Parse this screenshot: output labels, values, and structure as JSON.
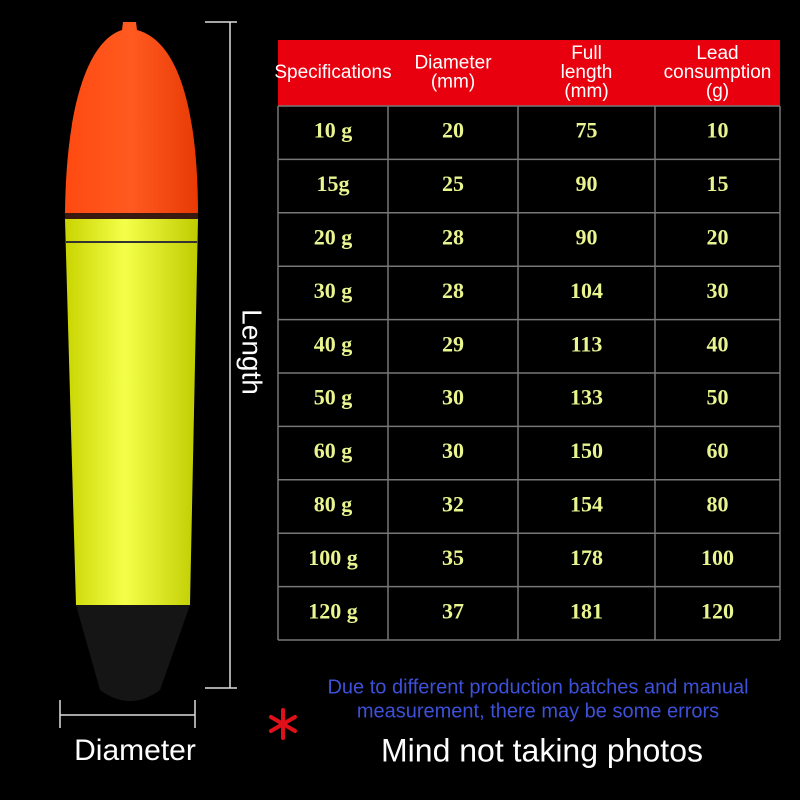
{
  "dimensions": {
    "length": "Length",
    "diameter": "Diameter"
  },
  "table": {
    "header": [
      [
        "Specifications"
      ],
      [
        "Diameter",
        "(mm)"
      ],
      [
        "Full",
        "length",
        "(mm)"
      ],
      [
        "Lead",
        "consumption",
        "(g)"
      ]
    ],
    "rows": [
      [
        "10 g",
        20,
        75,
        10
      ],
      [
        "15g",
        25,
        90,
        15
      ],
      [
        "20 g",
        28,
        90,
        20
      ],
      [
        "30 g",
        28,
        104,
        30
      ],
      [
        "40 g",
        29,
        113,
        40
      ],
      [
        "50 g",
        30,
        133,
        50
      ],
      [
        "60 g",
        30,
        150,
        60
      ],
      [
        "80 g",
        32,
        154,
        80
      ],
      [
        "100 g",
        35,
        178,
        100
      ],
      [
        "120 g",
        37,
        181,
        120
      ]
    ]
  },
  "note": {
    "lines": [
      "Due to different production batches and manual",
      "measurement, there may be some errors"
    ]
  },
  "caption": "Mind not taking photos"
}
